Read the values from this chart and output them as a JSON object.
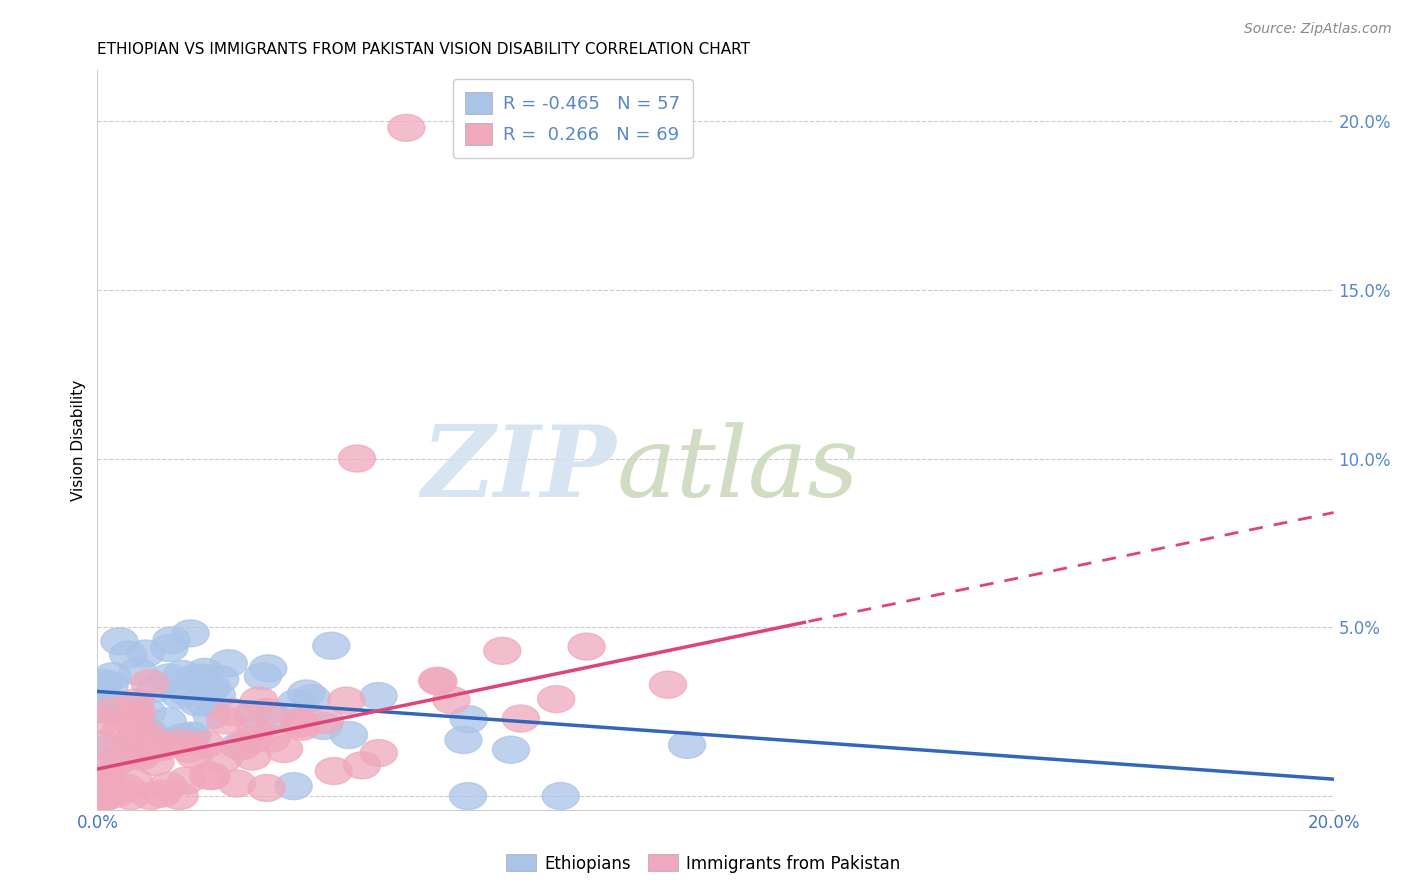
{
  "title": "ETHIOPIAN VS IMMIGRANTS FROM PAKISTAN VISION DISABILITY CORRELATION CHART",
  "source": "Source: ZipAtlas.com",
  "ylabel": "Vision Disability",
  "x_min": 0.0,
  "x_max": 0.2,
  "y_min": -0.004,
  "y_max": 0.215,
  "x_ticks": [
    0.0,
    0.04,
    0.08,
    0.12,
    0.16,
    0.2
  ],
  "x_tick_labels": [
    "0.0%",
    "",
    "",
    "",
    "",
    "20.0%"
  ],
  "y_ticks_right": [
    0.0,
    0.05,
    0.1,
    0.15,
    0.2
  ],
  "y_tick_labels_right": [
    "",
    "5.0%",
    "10.0%",
    "15.0%",
    "20.0%"
  ],
  "grid_color": "#cccccc",
  "background_color": "#ffffff",
  "ethiopian_color": "#aac4e8",
  "pakistan_color": "#f0a8bc",
  "ethiopian_line_color": "#3366bb",
  "pakistan_line_color": "#dd4477",
  "right_axis_color": "#5588cc",
  "R_ethiopian": -0.465,
  "N_ethiopian": 57,
  "R_pakistan": 0.266,
  "N_pakistan": 69,
  "legend_label_ethiopian": "Ethiopians",
  "legend_label_pakistan": "Immigrants from Pakistan",
  "eth_line_intercept": 0.031,
  "eth_line_slope": -0.13,
  "pak_line_intercept": 0.008,
  "pak_line_slope": 0.38,
  "pak_line_dash_start": 0.115
}
